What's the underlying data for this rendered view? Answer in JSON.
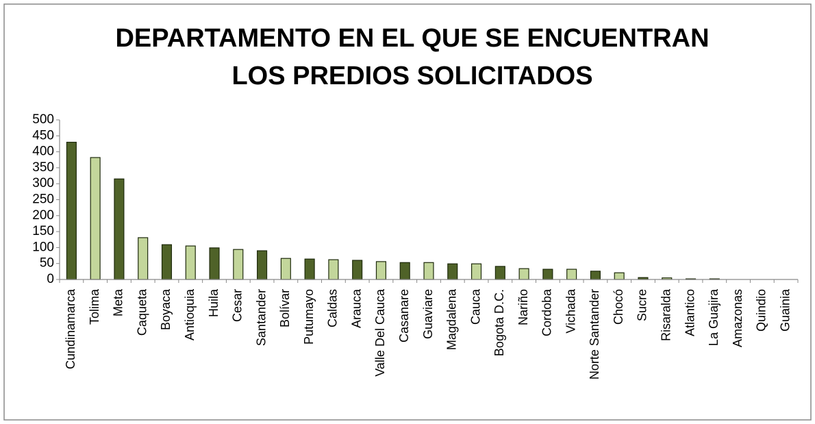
{
  "chart_data": {
    "type": "bar",
    "title": "DEPARTAMENTO EN EL QUE SE ENCUENTRAN LOS PREDIOS SOLICITADOS",
    "categories": [
      "Cundinamarca",
      "Tolima",
      "Meta",
      "Caqueta",
      "Boyaca",
      "Antioquia",
      "Huila",
      "Cesar",
      "Santander",
      "Bolívar",
      "Putumayo",
      "Caldas",
      "Arauca",
      "Valle Del Cauca",
      "Casanare",
      "Guaviare",
      "Magdalena",
      "Cauca",
      "Bogota D.C.",
      "Nariño",
      "Cordoba",
      "Vichada",
      "Norte Santander",
      "Chocó",
      "Sucre",
      "Risaralda",
      "Atlantico",
      "La Guajira",
      "Amazonas",
      "Quindio",
      "Guainia"
    ],
    "values": [
      430,
      382,
      315,
      131,
      109,
      105,
      99,
      94,
      90,
      66,
      64,
      62,
      60,
      56,
      53,
      53,
      49,
      49,
      41,
      34,
      32,
      32,
      26,
      21,
      6,
      5,
      2,
      2,
      0,
      0,
      0
    ],
    "colors": [
      "#4f6228",
      "#c3d69b"
    ],
    "ylim": [
      0,
      500
    ],
    "yticks": [
      0,
      50,
      100,
      150,
      200,
      250,
      300,
      350,
      400,
      450,
      500
    ],
    "grid": false
  }
}
